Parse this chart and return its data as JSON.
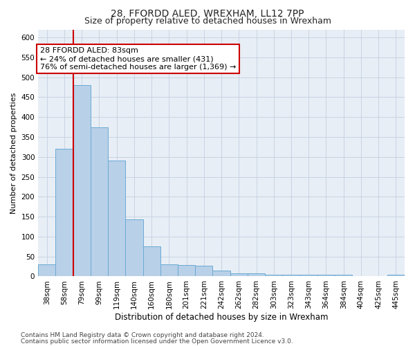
{
  "title1": "28, FFORDD ALED, WREXHAM, LL12 7PP",
  "title2": "Size of property relative to detached houses in Wrexham",
  "xlabel": "Distribution of detached houses by size in Wrexham",
  "ylabel": "Number of detached properties",
  "categories": [
    "38sqm",
    "58sqm",
    "79sqm",
    "99sqm",
    "119sqm",
    "140sqm",
    "160sqm",
    "180sqm",
    "201sqm",
    "221sqm",
    "242sqm",
    "262sqm",
    "282sqm",
    "303sqm",
    "323sqm",
    "343sqm",
    "364sqm",
    "384sqm",
    "404sqm",
    "425sqm",
    "445sqm"
  ],
  "values": [
    30,
    320,
    480,
    375,
    290,
    143,
    75,
    30,
    28,
    27,
    15,
    8,
    7,
    5,
    5,
    5,
    5,
    5,
    0,
    0,
    5
  ],
  "bar_color": "#b8d0e8",
  "bar_edge_color": "#6aaad4",
  "highlight_color": "#cc0000",
  "highlight_index": 2,
  "annotation_line1": "28 FFORDD ALED: 83sqm",
  "annotation_line2": "← 24% of detached houses are smaller (431)",
  "annotation_line3": "76% of semi-detached houses are larger (1,369) →",
  "annotation_box_color": "#ffffff",
  "annotation_box_edge_color": "#cc0000",
  "ylim": [
    0,
    620
  ],
  "yticks": [
    0,
    50,
    100,
    150,
    200,
    250,
    300,
    350,
    400,
    450,
    500,
    550,
    600
  ],
  "footer_line1": "Contains HM Land Registry data © Crown copyright and database right 2024.",
  "footer_line2": "Contains public sector information licensed under the Open Government Licence v3.0.",
  "bg_color": "#ffffff",
  "plot_bg_color": "#e8eef5",
  "grid_color": "#c8d4e4",
  "title1_fontsize": 10,
  "title2_fontsize": 9,
  "xlabel_fontsize": 8.5,
  "ylabel_fontsize": 8,
  "tick_fontsize": 7.5,
  "annotation_fontsize": 8,
  "footer_fontsize": 6.5
}
